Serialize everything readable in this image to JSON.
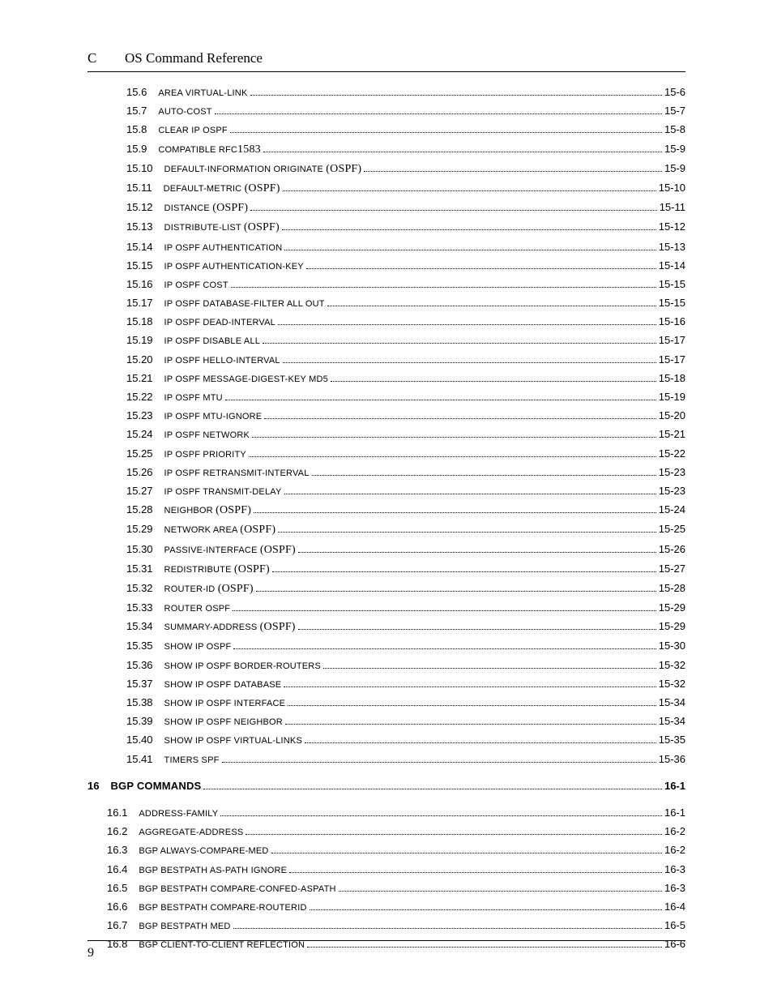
{
  "header": {
    "prefix": "C",
    "title": "OS Command Reference"
  },
  "footer": {
    "page_number": "9"
  },
  "typography": {
    "body_font": "Times New Roman",
    "toc_font": "Arial",
    "toc_fontsize_pt": 11,
    "num_fontsize_pt": 13,
    "header_fontsize_pt": 17,
    "text_color": "#000000",
    "background_color": "#ffffff",
    "dot_leader_color": "#000000"
  },
  "toc": [
    {
      "level": 3,
      "num": "15.6",
      "title": "AREA VIRTUAL-LINK",
      "page": "15-6"
    },
    {
      "level": 3,
      "num": "15.7",
      "title": "AUTO-COST",
      "page": "15-7"
    },
    {
      "level": 3,
      "num": "15.8",
      "title": "CLEAR IP OSPF",
      "page": "15-8"
    },
    {
      "level": 3,
      "num": "15.9",
      "title": "COMPATIBLE RFC<d>1583</d>",
      "page": "15-9"
    },
    {
      "level": 3,
      "num": "15.10",
      "title": "DEFAULT-INFORMATION ORIGINATE <p>(OSPF)</p>",
      "page": "15-9"
    },
    {
      "level": 3,
      "num": "15.11",
      "title": "DEFAULT-METRIC <p>(OSPF)</p>",
      "page": "15-10"
    },
    {
      "level": 3,
      "num": "15.12",
      "title": "DISTANCE <p>(OSPF)</p>",
      "page": "15-11"
    },
    {
      "level": 3,
      "num": "15.13",
      "title": "DISTRIBUTE-LIST <p>(OSPF)</p>",
      "page": "15-12"
    },
    {
      "level": 3,
      "num": "15.14",
      "title": "IP OSPF AUTHENTICATION",
      "page": "15-13"
    },
    {
      "level": 3,
      "num": "15.15",
      "title": "IP OSPF AUTHENTICATION-KEY",
      "page": "15-14"
    },
    {
      "level": 3,
      "num": "15.16",
      "title": "IP OSPF COST",
      "page": "15-15"
    },
    {
      "level": 3,
      "num": "15.17",
      "title": "IP OSPF DATABASE-FILTER ALL OUT",
      "page": "15-15"
    },
    {
      "level": 3,
      "num": "15.18",
      "title": "IP OSPF DEAD-INTERVAL",
      "page": "15-16"
    },
    {
      "level": 3,
      "num": "15.19",
      "title": "IP OSPF DISABLE ALL",
      "page": "15-17"
    },
    {
      "level": 3,
      "num": "15.20",
      "title": "IP OSPF HELLO-INTERVAL",
      "page": "15-17"
    },
    {
      "level": 3,
      "num": "15.21",
      "title": "IP OSPF MESSAGE-DIGEST-KEY MD5",
      "page": "15-18"
    },
    {
      "level": 3,
      "num": "15.22",
      "title": "IP OSPF MTU",
      "page": "15-19"
    },
    {
      "level": 3,
      "num": "15.23",
      "title": "IP OSPF MTU-IGNORE",
      "page": "15-20"
    },
    {
      "level": 3,
      "num": "15.24",
      "title": "IP OSPF NETWORK",
      "page": "15-21"
    },
    {
      "level": 3,
      "num": "15.25",
      "title": "IP OSPF PRIORITY",
      "page": "15-22"
    },
    {
      "level": 3,
      "num": "15.26",
      "title": "IP OSPF RETRANSMIT-INTERVAL",
      "page": "15-23"
    },
    {
      "level": 3,
      "num": "15.27",
      "title": "IP OSPF TRANSMIT-DELAY",
      "page": "15-23"
    },
    {
      "level": 3,
      "num": "15.28",
      "title": "NEIGHBOR <p>(OSPF)</p>",
      "page": "15-24"
    },
    {
      "level": 3,
      "num": "15.29",
      "title": "NETWORK AREA <p>(OSPF)</p>",
      "page": "15-25"
    },
    {
      "level": 3,
      "num": "15.30",
      "title": "PASSIVE-INTERFACE <p>(OSPF)</p>",
      "page": "15-26"
    },
    {
      "level": 3,
      "num": "15.31",
      "title": "REDISTRIBUTE <p>(OSPF)</p>",
      "page": "15-27"
    },
    {
      "level": 3,
      "num": "15.32",
      "title": "ROUTER-ID <p>(OSPF)</p>",
      "page": "15-28"
    },
    {
      "level": 3,
      "num": "15.33",
      "title": "ROUTER OSPF",
      "page": "15-29"
    },
    {
      "level": 3,
      "num": "15.34",
      "title": "SUMMARY-ADDRESS <p>(OSPF)</p>",
      "page": "15-29"
    },
    {
      "level": 3,
      "num": "15.35",
      "title": "SHOW IP OSPF",
      "page": "15-30"
    },
    {
      "level": 3,
      "num": "15.36",
      "title": "SHOW IP OSPF BORDER-ROUTERS",
      "page": "15-32"
    },
    {
      "level": 3,
      "num": "15.37",
      "title": "SHOW IP OSPF DATABASE",
      "page": "15-32"
    },
    {
      "level": 3,
      "num": "15.38",
      "title": "SHOW IP OSPF INTERFACE",
      "page": "15-34"
    },
    {
      "level": 3,
      "num": "15.39",
      "title": "SHOW IP OSPF NEIGHBOR",
      "page": "15-34"
    },
    {
      "level": 3,
      "num": "15.40",
      "title": "SHOW IP OSPF VIRTUAL-LINKS",
      "page": "15-35"
    },
    {
      "level": 3,
      "num": "15.41",
      "title": "TIMERS SPF",
      "page": "15-36"
    },
    {
      "level": 0,
      "gap": true
    },
    {
      "level": 1,
      "num": "16",
      "title": "BGP COMMANDS",
      "page": "16-1"
    },
    {
      "level": 0,
      "gap": true
    },
    {
      "level": 2,
      "num": "16.1",
      "title": "ADDRESS-FAMILY",
      "page": "16-1"
    },
    {
      "level": 2,
      "num": "16.2",
      "title": "AGGREGATE-ADDRESS",
      "page": "16-2"
    },
    {
      "level": 2,
      "num": "16.3",
      "title": "BGP ALWAYS-COMPARE-MED",
      "page": "16-2"
    },
    {
      "level": 2,
      "num": "16.4",
      "title": "BGP BESTPATH AS-PATH IGNORE",
      "page": "16-3"
    },
    {
      "level": 2,
      "num": "16.5",
      "title": "BGP BESTPATH COMPARE-CONFED-ASPATH",
      "page": "16-3"
    },
    {
      "level": 2,
      "num": "16.6",
      "title": "BGP BESTPATH COMPARE-ROUTERID",
      "page": "16-4"
    },
    {
      "level": 2,
      "num": "16.7",
      "title": "BGP BESTPATH MED",
      "page": "16-5"
    },
    {
      "level": 2,
      "num": "16.8",
      "title": "BGP CLIENT-TO-CLIENT REFLECTION",
      "page": "16-6"
    }
  ]
}
